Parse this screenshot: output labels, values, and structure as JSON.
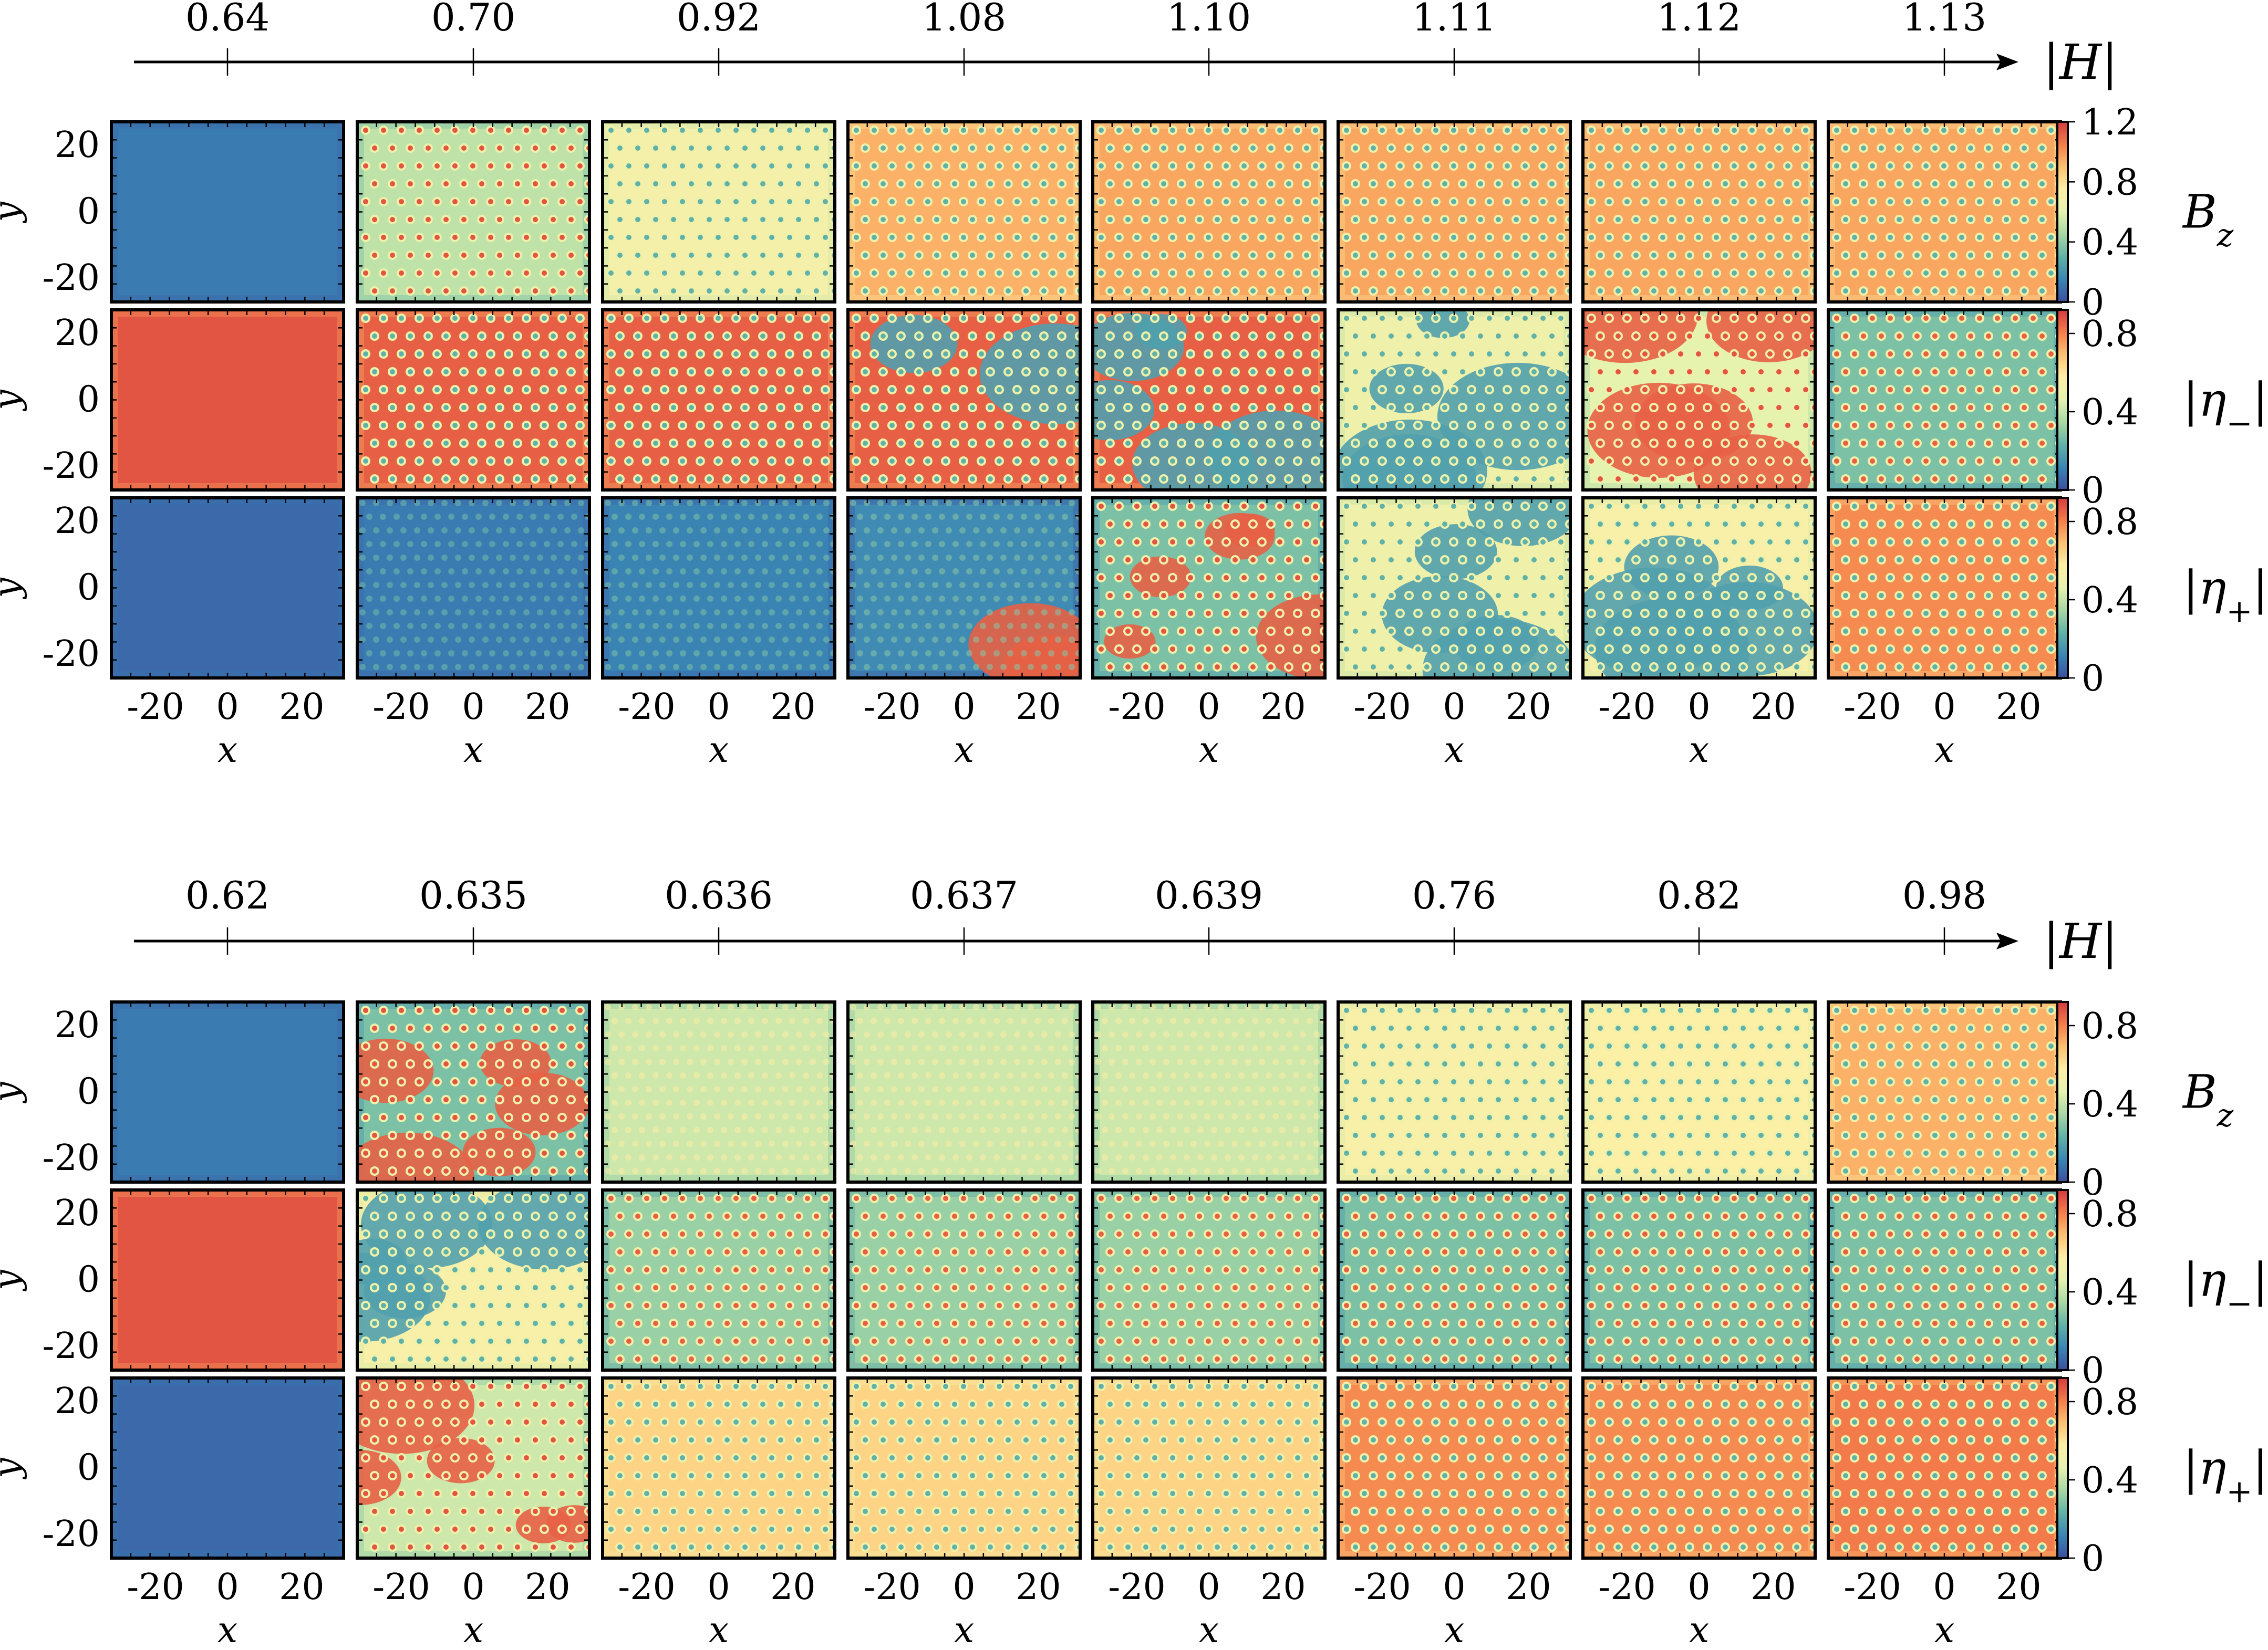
{
  "axis_symbol": "|H|",
  "blocks": [
    {
      "h_values": [
        "0.64",
        "0.70",
        "0.92",
        "1.08",
        "1.10",
        "1.11",
        "1.12",
        "1.13"
      ],
      "rows": [
        {
          "label": "B",
          "label_sub": "z",
          "cbar_ticks": [
            "1.2",
            "0.8",
            "0.4",
            "0"
          ],
          "panels": [
            {
              "fill": 0.1,
              "pattern": "uniform"
            },
            {
              "fill": 0.42,
              "pattern": "dots"
            },
            {
              "fill": 0.58,
              "pattern": "dots"
            },
            {
              "fill": 0.78,
              "pattern": "dots"
            },
            {
              "fill": 0.8,
              "pattern": "dots"
            },
            {
              "fill": 0.8,
              "pattern": "dots"
            },
            {
              "fill": 0.8,
              "pattern": "dots"
            },
            {
              "fill": 0.8,
              "pattern": "dots"
            }
          ]
        },
        {
          "label": "|η",
          "label_sub": "−",
          "label_end": "|",
          "cbar_ticks": [
            "0.8",
            "0.4",
            "0"
          ],
          "panels": [
            {
              "fill": 0.95,
              "pattern": "uniform"
            },
            {
              "fill": 0.93,
              "pattern": "dots"
            },
            {
              "fill": 0.93,
              "pattern": "dots"
            },
            {
              "fill": 0.93,
              "pattern": "dots-domain"
            },
            {
              "fill": 0.93,
              "pattern": "mixed"
            },
            {
              "fill": 0.55,
              "pattern": "mixed"
            },
            {
              "fill": 0.5,
              "pattern": "mixed"
            },
            {
              "fill": 0.3,
              "pattern": "dots-inverse"
            }
          ]
        },
        {
          "label": "|η",
          "label_sub": "+",
          "label_end": "|",
          "cbar_ticks": [
            "0.8",
            "0.4",
            "0"
          ],
          "panels": [
            {
              "fill": 0.06,
              "pattern": "uniform"
            },
            {
              "fill": 0.1,
              "pattern": "texture"
            },
            {
              "fill": 0.12,
              "pattern": "texture"
            },
            {
              "fill": 0.14,
              "pattern": "texture-domain"
            },
            {
              "fill": 0.3,
              "pattern": "mixed"
            },
            {
              "fill": 0.55,
              "pattern": "mixed"
            },
            {
              "fill": 0.6,
              "pattern": "mixed"
            },
            {
              "fill": 0.85,
              "pattern": "dots"
            }
          ]
        }
      ]
    },
    {
      "h_values": [
        "0.62",
        "0.635",
        "0.636",
        "0.637",
        "0.639",
        "0.76",
        "0.82",
        "0.98"
      ],
      "rows": [
        {
          "label": "B",
          "label_sub": "z",
          "cbar_ticks": [
            "0.8",
            "0.4",
            "0"
          ],
          "panels": [
            {
              "fill": 0.1,
              "pattern": "uniform"
            },
            {
              "fill": 0.3,
              "pattern": "mixed"
            },
            {
              "fill": 0.45,
              "pattern": "texture"
            },
            {
              "fill": 0.45,
              "pattern": "texture"
            },
            {
              "fill": 0.45,
              "pattern": "texture"
            },
            {
              "fill": 0.6,
              "pattern": "dots"
            },
            {
              "fill": 0.62,
              "pattern": "dots"
            },
            {
              "fill": 0.78,
              "pattern": "dots"
            }
          ]
        },
        {
          "label": "|η",
          "label_sub": "−",
          "label_end": "|",
          "cbar_ticks": [
            "0.8",
            "0.4",
            "0"
          ],
          "panels": [
            {
              "fill": 0.95,
              "pattern": "uniform"
            },
            {
              "fill": 0.6,
              "pattern": "mixed"
            },
            {
              "fill": 0.35,
              "pattern": "dots-inverse"
            },
            {
              "fill": 0.35,
              "pattern": "dots-inverse"
            },
            {
              "fill": 0.35,
              "pattern": "dots-inverse"
            },
            {
              "fill": 0.3,
              "pattern": "dots-inverse"
            },
            {
              "fill": 0.3,
              "pattern": "dots-inverse"
            },
            {
              "fill": 0.3,
              "pattern": "dots-inverse"
            }
          ]
        },
        {
          "label": "|η",
          "label_sub": "+",
          "label_end": "|",
          "cbar_ticks": [
            "0.8",
            "0.4",
            "0"
          ],
          "panels": [
            {
              "fill": 0.06,
              "pattern": "uniform"
            },
            {
              "fill": 0.45,
              "pattern": "mixed"
            },
            {
              "fill": 0.7,
              "pattern": "dots"
            },
            {
              "fill": 0.7,
              "pattern": "dots"
            },
            {
              "fill": 0.7,
              "pattern": "dots"
            },
            {
              "fill": 0.85,
              "pattern": "dots"
            },
            {
              "fill": 0.85,
              "pattern": "dots"
            },
            {
              "fill": 0.88,
              "pattern": "dots"
            }
          ]
        }
      ]
    }
  ],
  "y_ticks": [
    "20",
    "0",
    "-20"
  ],
  "x_ticks": [
    "-20",
    "0",
    "20"
  ],
  "xlabel": "x",
  "ylabel": "y",
  "colormap": [
    "#3b4ea0",
    "#3a86b5",
    "#60b2a8",
    "#a7d8a4",
    "#e6f3ae",
    "#fdefa6",
    "#fdc170",
    "#f47d4a",
    "#d73a3e"
  ]
}
